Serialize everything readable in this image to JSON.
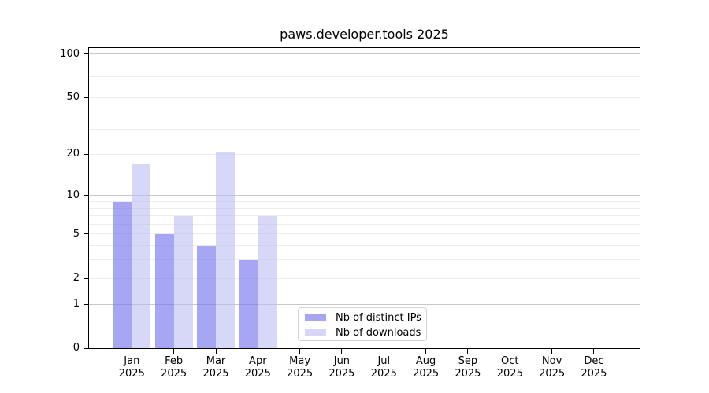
{
  "chart_data": {
    "type": "bar",
    "title": "paws.developer.tools 2025",
    "categories": [
      "Jan",
      "Feb",
      "Mar",
      "Apr",
      "May",
      "Jun",
      "Jul",
      "Aug",
      "Sep",
      "Oct",
      "Nov",
      "Dec"
    ],
    "x_tick_second_line": "2025",
    "series": [
      {
        "name": "Nb of distinct IPs",
        "key": "distinct-ips",
        "legend_color": "#a6a6f0",
        "bar_color": "rgba(119,119,240,0.65)",
        "values": [
          9,
          5,
          4,
          3,
          null,
          null,
          null,
          null,
          null,
          null,
          null,
          null
        ]
      },
      {
        "name": "Nb of downloads",
        "key": "downloads",
        "legend_color": "#d6d6f6",
        "bar_color": "rgba(184,184,242,0.56)",
        "values": [
          17,
          7,
          21,
          7,
          null,
          null,
          null,
          null,
          null,
          null,
          null,
          null
        ]
      }
    ],
    "y_axis": {
      "ticks": [
        0,
        1,
        2,
        5,
        10,
        20,
        50,
        100
      ],
      "scale": "log10(1+x)",
      "ylim": [
        0,
        110
      ]
    },
    "gridlines": {
      "minor_values": [
        2,
        3,
        4,
        5,
        6,
        7,
        8,
        9,
        20,
        30,
        40,
        50,
        60,
        70,
        80,
        90
      ],
      "major_values": [
        1,
        10,
        100
      ],
      "minor_color": "#ececec",
      "major_color": "#c8c8c8",
      "orientation": "horizontal"
    },
    "legend": {
      "position": "inside-bottom-center"
    },
    "axis_color": "#000000",
    "background_color": "#ffffff",
    "grid_on": true
  }
}
